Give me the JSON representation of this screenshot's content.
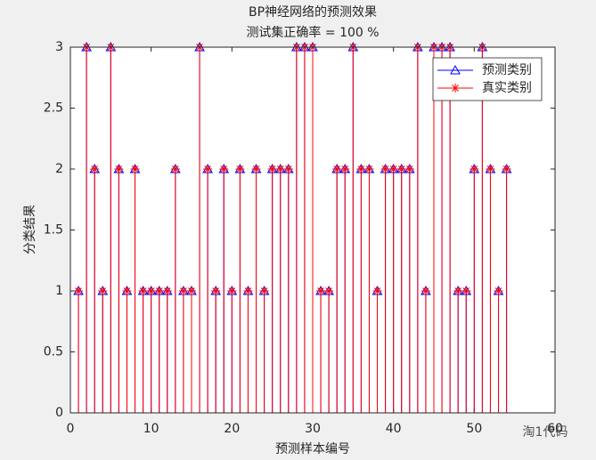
{
  "chart_data": {
    "type": "stem",
    "title": "BP神经网络的预测效果",
    "subtitle": "测试集正确率 = 100 %",
    "x_label": "预测样本编号",
    "y_label": "分类结果",
    "watermark": "淘1代码",
    "x": [
      1,
      2,
      3,
      4,
      5,
      6,
      7,
      8,
      9,
      10,
      11,
      12,
      13,
      14,
      15,
      16,
      17,
      18,
      19,
      20,
      21,
      22,
      23,
      24,
      25,
      26,
      27,
      28,
      29,
      30,
      31,
      32,
      33,
      34,
      35,
      36,
      37,
      38,
      39,
      40,
      41,
      42,
      43,
      44,
      45,
      46,
      47,
      48,
      49,
      50,
      51,
      52,
      53,
      54
    ],
    "series": [
      {
        "name": "预测类别",
        "color": "#0000ff",
        "marker": "triangle",
        "values": [
          1,
          3,
          2,
          1,
          3,
          2,
          1,
          2,
          1,
          1,
          1,
          1,
          2,
          1,
          1,
          3,
          2,
          1,
          2,
          1,
          2,
          1,
          2,
          1,
          2,
          2,
          2,
          3,
          3,
          3,
          1,
          1,
          2,
          2,
          3,
          2,
          2,
          1,
          2,
          2,
          2,
          2,
          3,
          1,
          3,
          3,
          3,
          1,
          1,
          2,
          3,
          2,
          1,
          2
        ]
      },
      {
        "name": "真实类别",
        "color": "#ff0000",
        "marker": "asterisk",
        "values": [
          1,
          3,
          2,
          1,
          3,
          2,
          1,
          2,
          1,
          1,
          1,
          1,
          2,
          1,
          1,
          3,
          2,
          1,
          2,
          1,
          2,
          1,
          2,
          1,
          2,
          2,
          2,
          3,
          3,
          3,
          1,
          1,
          2,
          2,
          3,
          2,
          2,
          1,
          2,
          2,
          2,
          2,
          3,
          1,
          3,
          3,
          3,
          1,
          1,
          2,
          3,
          2,
          1,
          2
        ]
      }
    ],
    "xlim": [
      0,
      60
    ],
    "xticks": [
      0,
      10,
      20,
      30,
      40,
      50,
      60
    ],
    "ylim": [
      0,
      3
    ],
    "yticks": [
      0,
      0.5,
      1,
      1.5,
      2,
      2.5,
      3
    ],
    "grid": false,
    "legend": "top-right"
  }
}
